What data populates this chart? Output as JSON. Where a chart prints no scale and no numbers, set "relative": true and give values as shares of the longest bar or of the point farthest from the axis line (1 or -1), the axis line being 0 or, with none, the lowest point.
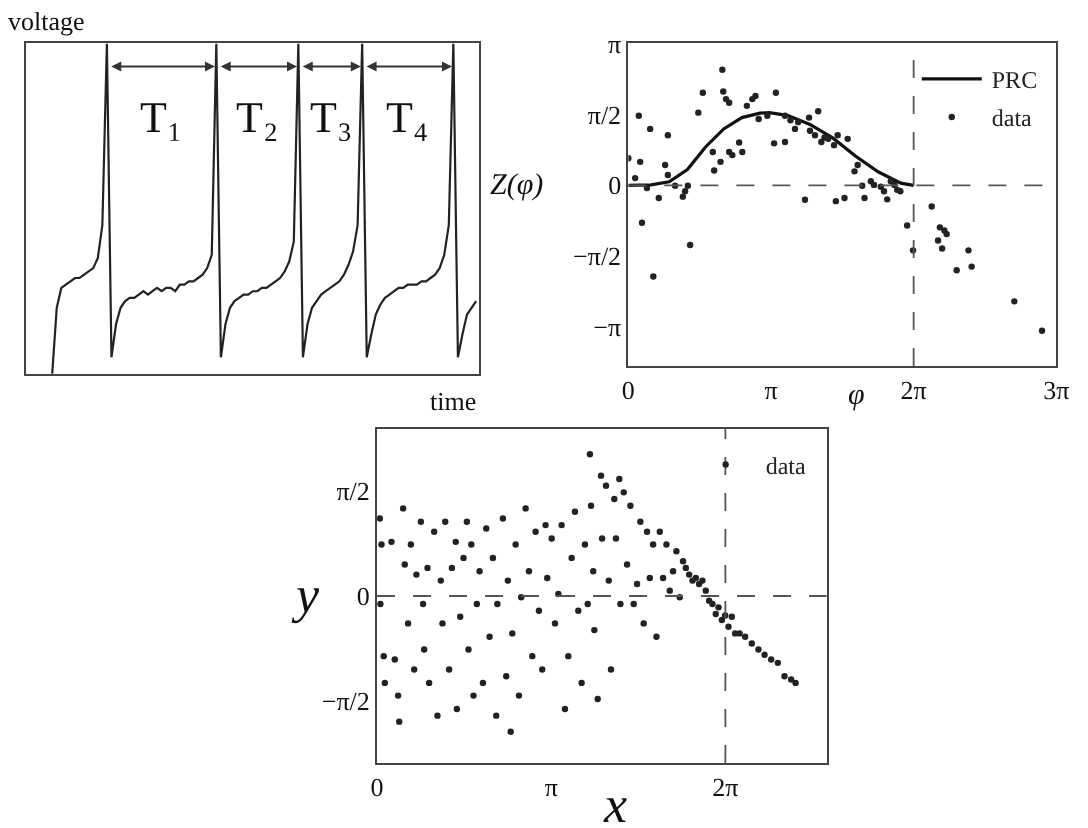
{
  "chart_data": [
    {
      "type": "line",
      "relative": true,
      "xlabel": "time",
      "ylabel": "voltage",
      "legend": false,
      "color": "#222222",
      "annotations": [
        "T₁",
        "T₂",
        "T₃",
        "T₄"
      ],
      "categories": [
        null,
        null,
        null,
        null,
        null,
        null,
        null,
        null,
        null,
        null,
        null,
        null,
        null,
        null,
        null,
        null,
        null,
        null,
        null,
        null,
        null,
        null,
        null,
        null,
        null,
        null,
        null,
        null,
        null,
        null,
        null,
        null,
        null,
        null,
        null,
        null,
        null,
        null,
        null,
        null,
        null,
        null,
        null,
        null,
        null,
        null,
        null,
        null,
        null,
        null,
        null,
        null,
        null,
        null,
        null,
        null,
        null,
        null,
        null,
        null,
        null,
        null,
        null,
        null,
        null,
        null,
        null,
        null,
        null,
        null,
        null,
        null,
        null,
        null,
        null,
        null,
        null,
        null,
        null,
        null,
        null,
        null,
        null,
        null,
        null,
        null,
        null,
        null,
        null,
        null,
        null,
        null,
        null,
        null
      ],
      "values": [
        0,
        0.2,
        0.26,
        0.27,
        0.28,
        0.29,
        0.29,
        0.3,
        0.31,
        0.32,
        0.35,
        0.45,
        1.0,
        0.05,
        0.15,
        0.2,
        0.22,
        0.23,
        0.23,
        0.24,
        0.25,
        0.24,
        0.25,
        0.26,
        0.25,
        0.26,
        0.26,
        0.25,
        0.27,
        0.27,
        0.28,
        0.28,
        0.29,
        0.3,
        0.32,
        0.36,
        1.0,
        0.05,
        0.15,
        0.2,
        0.22,
        0.23,
        0.24,
        0.24,
        0.25,
        0.25,
        0.26,
        0.26,
        0.27,
        0.28,
        0.29,
        0.31,
        0.34,
        0.4,
        1.0,
        0.05,
        0.15,
        0.2,
        0.22,
        0.24,
        0.25,
        0.26,
        0.27,
        0.28,
        0.3,
        0.33,
        0.37,
        0.45,
        1.0,
        0.05,
        0.12,
        0.18,
        0.21,
        0.23,
        0.24,
        0.25,
        0.26,
        0.26,
        0.27,
        0.27,
        0.27,
        0.28,
        0.28,
        0.29,
        0.3,
        0.32,
        0.36,
        0.45,
        1.0,
        0.05,
        0.12,
        0.18,
        0.2,
        0.22
      ]
    },
    {
      "type": "scatter",
      "xlabel": "φ",
      "ylabel": "Z(φ)",
      "legend": "top right",
      "xlim": [
        0,
        9.4248
      ],
      "xticks": [
        0,
        {
          "value": 3.1416,
          "label": "π"
        },
        {
          "value": 6.2832,
          "label": "2π"
        },
        {
          "value": 9.4248,
          "label": "3π"
        }
      ],
      "ylim": [
        -4.0,
        3.1416
      ],
      "yticks": [
        {
          "value": -3.1416,
          "label": "−π"
        },
        {
          "value": -1.5708,
          "label": "−π/2"
        },
        0,
        {
          "value": 1.5708,
          "label": "π/2"
        },
        {
          "value": 3.1416,
          "label": "π"
        }
      ],
      "ref_lines": [
        {
          "axis": "y",
          "value": 0,
          "line_style": "dashed"
        },
        {
          "axis": "x",
          "value": 6.2832,
          "line_style": "dashed"
        }
      ],
      "series": [
        {
          "name": "PRC",
          "type": "line",
          "color": "#111111",
          "line_style": "solid",
          "marker": "none",
          "x": [
            0,
            0.5,
            0.9,
            1.3,
            1.7,
            2.1,
            2.5,
            2.9,
            3.1,
            3.5,
            4.0,
            4.5,
            5.0,
            5.5,
            6.0,
            6.28
          ],
          "values": [
            0,
            0.01,
            0.08,
            0.35,
            0.85,
            1.25,
            1.5,
            1.6,
            1.61,
            1.55,
            1.35,
            1.05,
            0.65,
            0.3,
            0.05,
            0
          ]
        },
        {
          "name": "data",
          "type": "scatter",
          "color": "#222222",
          "marker": "circle",
          "x": [
            0,
            0.15,
            0.23,
            0.26,
            0.3,
            0.41,
            0.48,
            0.55,
            0.67,
            0.81,
            0.87,
            0.87,
            1.03,
            1.2,
            1.25,
            1.31,
            1.36,
            1.54,
            1.64,
            1.86,
            1.89,
            2.03,
            2.07,
            2.09,
            2.15,
            2.22,
            2.22,
            2.29,
            2.44,
            2.51,
            2.61,
            2.73,
            2.8,
            2.87,
            3.06,
            3.21,
            3.25,
            3.45,
            3.45,
            3.57,
            3.67,
            3.74,
            3.89,
            3.98,
            4.0,
            4.11,
            4.18,
            4.25,
            4.32,
            4.4,
            4.53,
            4.57,
            4.61,
            4.76,
            4.83,
            4.98,
            5.05,
            5.15,
            5.2,
            5.34,
            5.41,
            5.56,
            5.63,
            5.7,
            5.78,
            5.86,
            5.92,
            5.99,
            6.14,
            6.27,
            6.68,
            6.82,
            6.86,
            6.91,
            6.96,
            7.01,
            7.23,
            7.49,
            7.56,
            8.5,
            9.11
          ],
          "values": [
            0.6,
            0.16,
            1.54,
            0.52,
            -0.83,
            -0.06,
            1.25,
            -2.02,
            -0.28,
            0.45,
            1.11,
            0.23,
            -0.01,
            -0.25,
            -0.13,
            -0.01,
            -1.32,
            1.61,
            2.05,
            0.74,
            0.33,
            0.52,
            2.56,
            2.08,
            1.91,
            1.83,
            0.74,
            0.67,
            0.95,
            0.74,
            1.76,
            1.91,
            1.98,
            1.47,
            1.54,
            0.93,
            2.05,
            0.96,
            1.54,
            1.44,
            1.25,
            1.4,
            -0.32,
            1.5,
            1.21,
            1.11,
            1.64,
            0.96,
            1.06,
            1.03,
            0.89,
            -0.35,
            1.11,
            -0.28,
            1.03,
            0.31,
            0.45,
            -0.01,
            -0.28,
            0.09,
            0.01,
            -0.03,
            -0.13,
            -0.31,
            0.09,
            0.01,
            -0.1,
            -0.13,
            -0.89,
            -1.44,
            -0.47,
            -1.22,
            -0.93,
            -1.4,
            -1.0,
            -1.08,
            -1.88,
            -1.44,
            -1.8,
            -2.57,
            -3.22
          ]
        }
      ]
    },
    {
      "type": "scatter",
      "xlabel": "x",
      "ylabel": "y",
      "legend": "top right",
      "marker": "circle",
      "xlim": [
        0,
        8.11
      ],
      "xticks": [
        0,
        {
          "value": 3.1416,
          "label": "π"
        },
        {
          "value": 6.2832,
          "label": "2π"
        }
      ],
      "ylim": [
        -2.5,
        2.5
      ],
      "yticks": [
        {
          "value": -1.5708,
          "label": "−π/2"
        },
        0,
        {
          "value": 1.5708,
          "label": "π/2"
        }
      ],
      "ref_lines": [
        {
          "axis": "y",
          "value": 0,
          "line_style": "dashed"
        },
        {
          "axis": "x",
          "value": 6.2832,
          "line_style": "dashed"
        }
      ],
      "series": [
        {
          "name": "data",
          "color": "#222222",
          "x": [
            0.05,
            0.08,
            0.06,
            0.12,
            0.14,
            0.26,
            0.32,
            0.38,
            0.4,
            0.47,
            0.5,
            0.56,
            0.61,
            0.67,
            0.71,
            0.79,
            0.83,
            0.85,
            0.91,
            0.94,
            1.03,
            1.09,
            1.15,
            1.18,
            1.23,
            1.3,
            1.35,
            1.42,
            1.44,
            1.5,
            1.56,
            1.62,
            1.65,
            1.7,
            1.74,
            1.8,
            1.85,
            1.91,
            1.97,
            2.03,
            2.09,
            2.15,
            2.17,
            2.27,
            2.33,
            2.36,
            2.41,
            2.44,
            2.5,
            2.56,
            2.6,
            2.68,
            2.74,
            2.8,
            2.86,
            2.92,
            2.98,
            3.04,
            3.07,
            3.15,
            3.21,
            3.27,
            3.33,
            3.39,
            3.45,
            3.51,
            3.57,
            3.63,
            3.69,
            3.75,
            3.8,
            3.84,
            3.86,
            3.9,
            3.92,
            3.98,
            4.04,
            4.06,
            4.13,
            4.18,
            4.22,
            4.28,
            4.31,
            4.37,
            4.39,
            4.45,
            4.51,
            4.57,
            4.63,
            4.69,
            4.75,
            4.81,
            4.87,
            4.92,
            4.98,
            5.04,
            5.1,
            5.16,
            5.22,
            5.28,
            5.34,
            5.4,
            5.46,
            5.52,
            5.57,
            5.63,
            5.69,
            5.75,
            5.81,
            5.87,
            5.93,
            5.99,
            6.05,
            6.11,
            6.16,
            6.22,
            6.28,
            6.34,
            6.4,
            6.46,
            6.54,
            6.64,
            6.76,
            6.88,
            6.99,
            7.11,
            7.23,
            7.35,
            7.47,
            7.55
          ],
          "values": [
            1.16,
            0.77,
            -0.12,
            -0.9,
            -1.3,
            0.81,
            -0.95,
            -1.49,
            -1.88,
            1.31,
            0.47,
            -0.41,
            0.77,
            -1.1,
            0.32,
            1.11,
            -0.12,
            -0.8,
            0.42,
            -1.3,
            0.96,
            -1.79,
            0.23,
            -0.41,
            1.11,
            -1.1,
            0.42,
            0.81,
            -1.69,
            -0.31,
            0.57,
            1.11,
            -0.8,
            0.77,
            -1.49,
            -0.12,
            0.37,
            -1.3,
            1.01,
            -0.61,
            0.57,
            -1.79,
            -0.12,
            1.16,
            -1.2,
            0.23,
            -2.03,
            -0.56,
            0.77,
            -1.49,
            -0.02,
            1.31,
            0.37,
            -0.9,
            0.96,
            -0.22,
            -1.1,
            1.06,
            0.27,
            0.86,
            -0.41,
            0.03,
            1.06,
            -1.69,
            -0.9,
            0.57,
            1.26,
            -0.22,
            -1.3,
            0.77,
            -0.12,
            2.12,
            1.35,
            0.37,
            -0.51,
            -1.54,
            1.8,
            0.86,
            1.65,
            0.23,
            -1.1,
            1.45,
            0.86,
            1.75,
            -0.12,
            1.55,
            0.47,
            1.35,
            -0.12,
            0.18,
            1.11,
            -0.41,
            0.96,
            0.27,
            0.77,
            -0.61,
            0.96,
            0.27,
            0.77,
            0.08,
            0.37,
            0.67,
            -0.02,
            0.52,
            0.42,
            0.32,
            0.23,
            0.27,
            0.18,
            0.23,
            0.08,
            -0.07,
            -0.12,
            -0.27,
            -0.17,
            -0.36,
            -0.29,
            -0.46,
            -0.31,
            -0.56,
            -0.56,
            -0.61,
            -0.71,
            -0.8,
            -0.88,
            -0.95,
            -1.0,
            -1.2,
            -1.25,
            -1.3
          ]
        }
      ]
    }
  ]
}
